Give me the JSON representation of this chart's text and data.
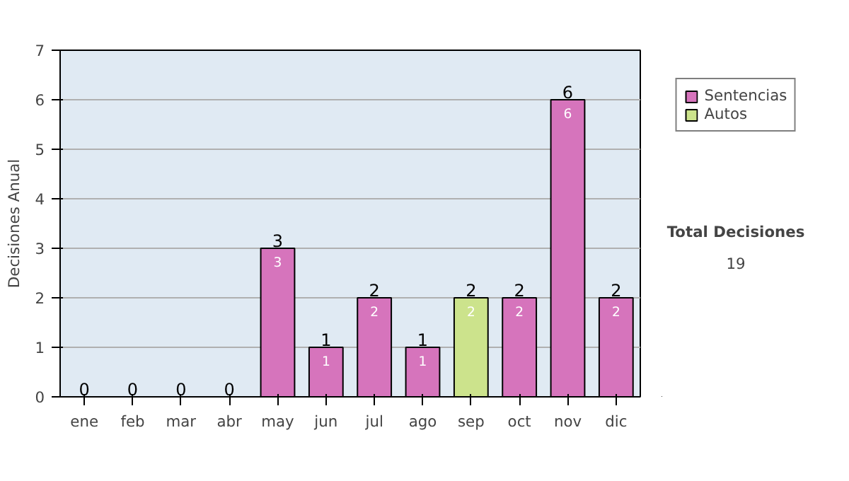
{
  "chart_data": {
    "type": "bar",
    "stacked": true,
    "ylabel": "Decisiones Anual",
    "categories": [
      "ene",
      "feb",
      "mar",
      "abr",
      "may",
      "jun",
      "jul",
      "ago",
      "sep",
      "oct",
      "nov",
      "dic"
    ],
    "series": [
      {
        "name": "Sentencias",
        "color": "#d674bc",
        "values": [
          0,
          0,
          0,
          0,
          3,
          1,
          2,
          1,
          0,
          2,
          6,
          2
        ],
        "value_labels": [
          null,
          null,
          null,
          null,
          "3",
          "1",
          "2",
          "1",
          null,
          "2",
          "6",
          "2"
        ]
      },
      {
        "name": "Autos",
        "color": "#cce38c",
        "values": [
          0,
          0,
          0,
          0,
          0,
          0,
          0,
          0,
          2,
          0,
          0,
          0
        ],
        "value_labels": [
          null,
          null,
          null,
          null,
          null,
          null,
          null,
          null,
          "2",
          null,
          null,
          null
        ]
      }
    ],
    "totals": [
      "0",
      "0",
      "0",
      "0",
      "3",
      "1",
      "2",
      "1",
      "2",
      "2",
      "6",
      "2"
    ],
    "ylim": [
      0,
      7
    ],
    "yticks": [
      0,
      1,
      2,
      3,
      4,
      5,
      6,
      7
    ],
    "grid": "y",
    "legend": "right",
    "annotations": [
      "Total Decisiones",
      "19"
    ]
  }
}
